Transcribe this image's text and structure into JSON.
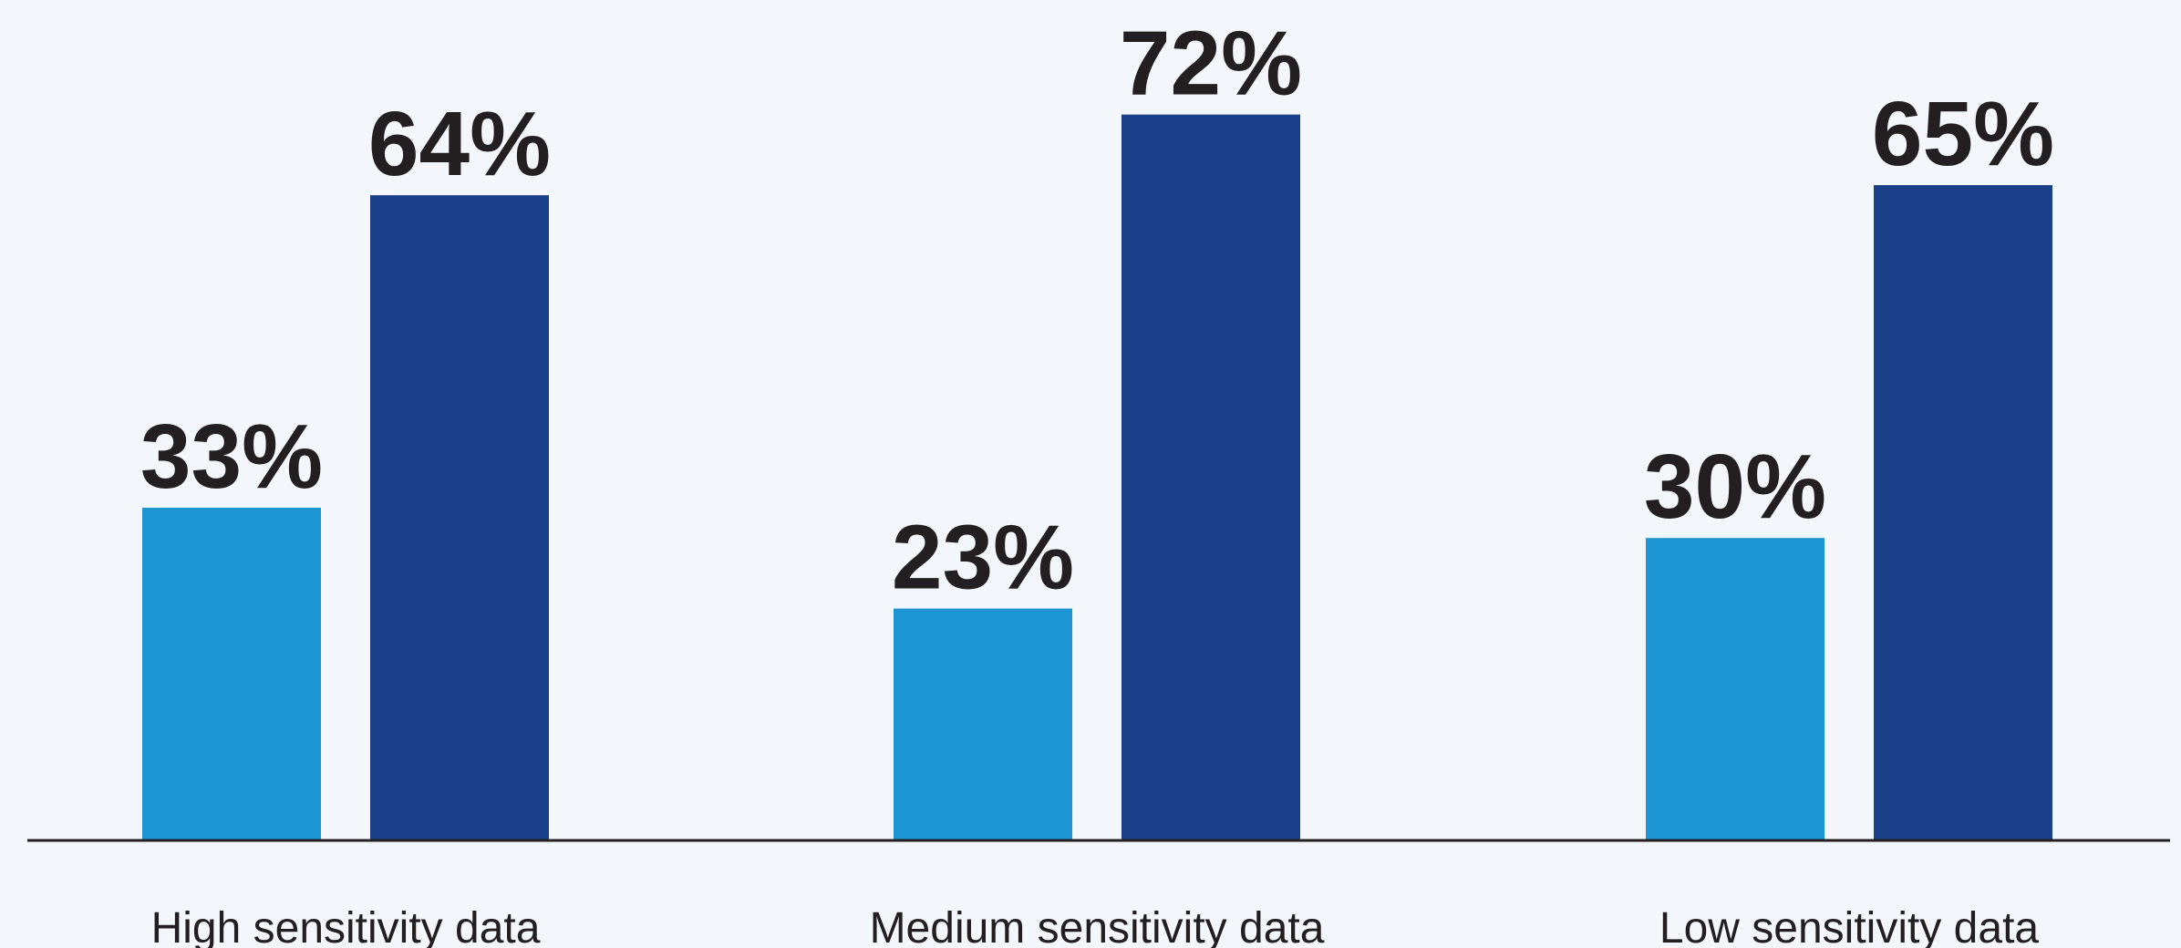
{
  "chart_data": {
    "type": "bar",
    "categories": [
      "High sensitivity data",
      "Medium sensitivity data",
      "Low sensitivity data"
    ],
    "series": [
      {
        "values": [
          33,
          23,
          30
        ],
        "color": "#1e95d3"
      },
      {
        "values": [
          64,
          72,
          65
        ],
        "color": "#1b4089"
      }
    ],
    "value_labels": [
      [
        "33%",
        "23%",
        "30%"
      ],
      [
        "64%",
        "72%",
        "65%"
      ]
    ],
    "ylim": [
      0,
      80
    ],
    "grid": false,
    "axis_color": "#231f20",
    "background": "#f3f7fb"
  }
}
